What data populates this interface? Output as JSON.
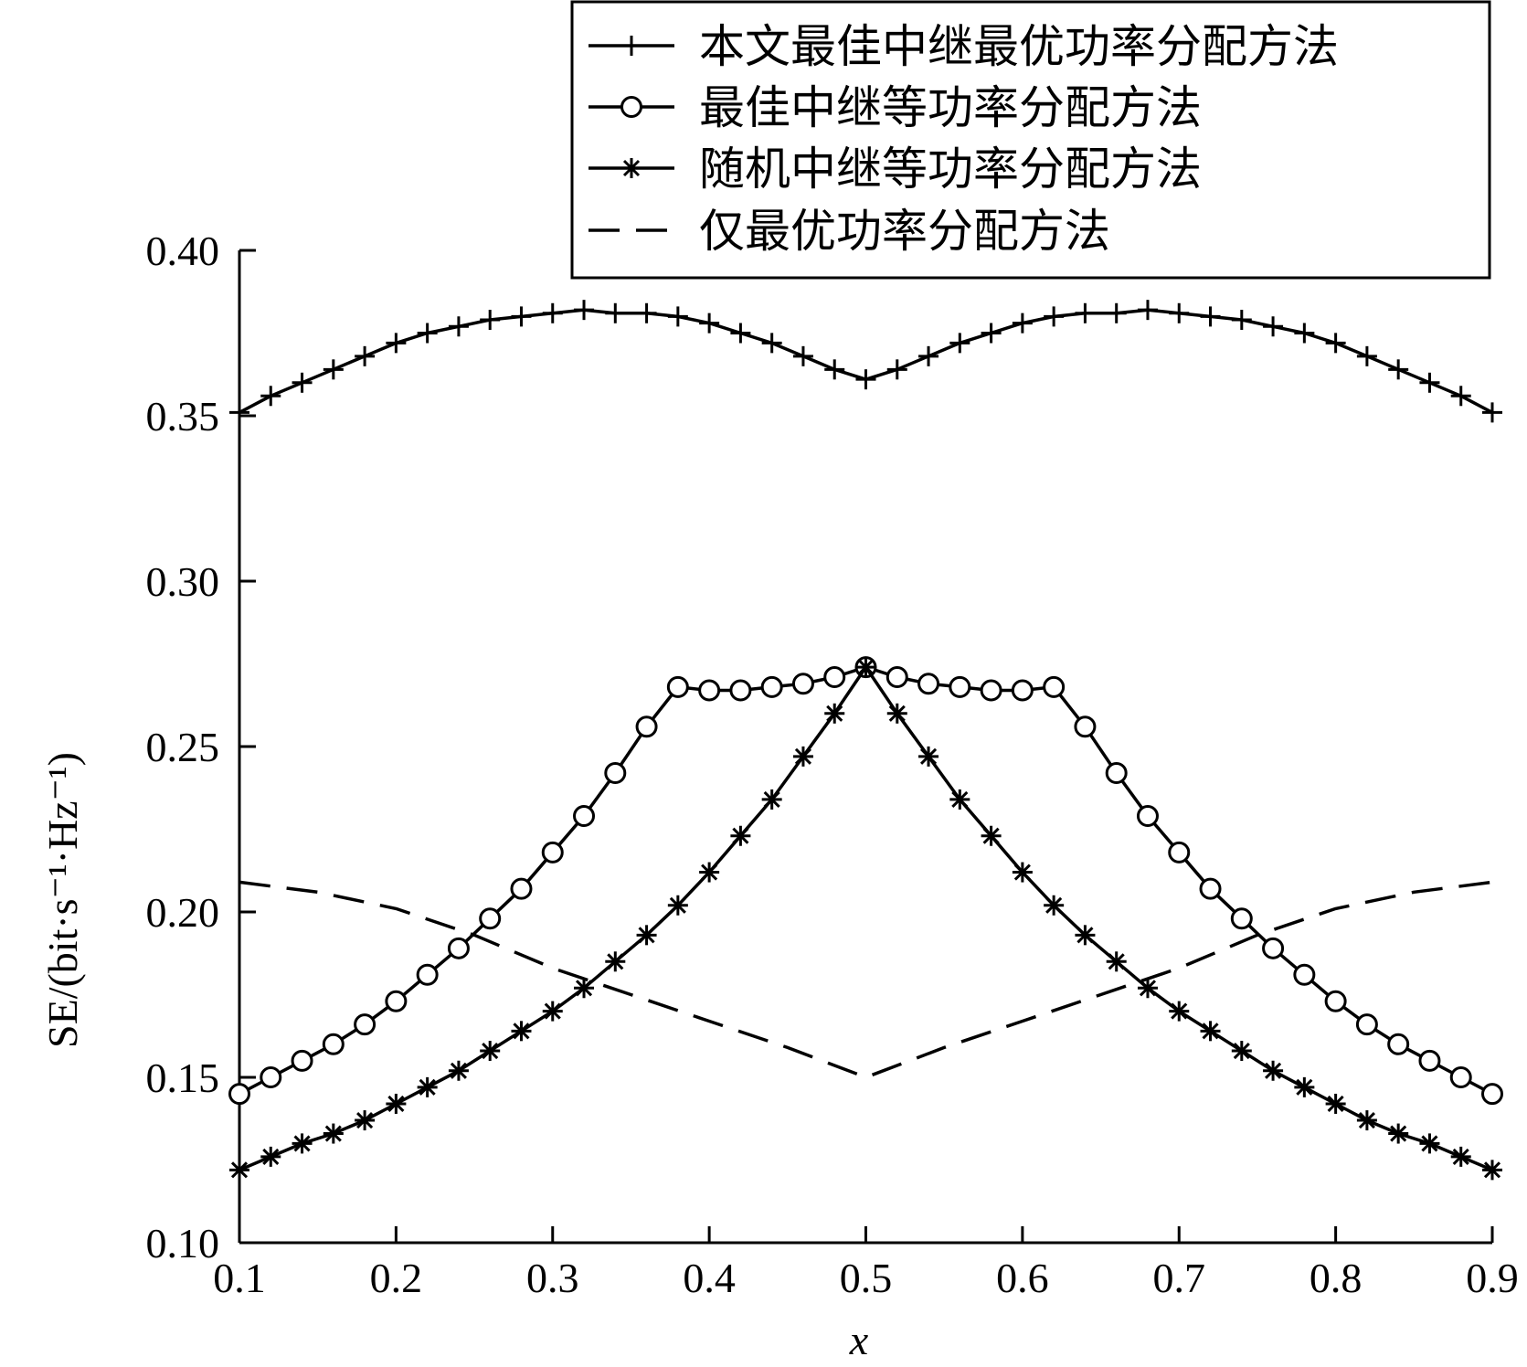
{
  "chart_data": {
    "type": "line",
    "xlabel": "x",
    "ylabel": "SE/(bit·s⁻¹·Hz⁻¹)",
    "xlim": [
      0.1,
      0.9
    ],
    "ylim": [
      0.1,
      0.4
    ],
    "x_ticks": [
      "0.1",
      "0.2",
      "0.3",
      "0.4",
      "0.5",
      "0.6",
      "0.7",
      "0.8",
      "0.9"
    ],
    "y_ticks": [
      "0.10",
      "0.15",
      "0.20",
      "0.25",
      "0.30",
      "0.35",
      "0.40"
    ],
    "grid": false,
    "legend_position": "top-right",
    "x": [
      0.1,
      0.12,
      0.14,
      0.16,
      0.18,
      0.2,
      0.22,
      0.24,
      0.26,
      0.28,
      0.3,
      0.32,
      0.34,
      0.36,
      0.38,
      0.4,
      0.42,
      0.44,
      0.46,
      0.48,
      0.5,
      0.52,
      0.54,
      0.56,
      0.58,
      0.6,
      0.62,
      0.64,
      0.66,
      0.68,
      0.7,
      0.72,
      0.74,
      0.76,
      0.78,
      0.8,
      0.82,
      0.84,
      0.86,
      0.88,
      0.9
    ],
    "series": [
      {
        "name": "本文最佳中继最优功率分配方法",
        "marker": "plus",
        "line": "solid",
        "values": [
          0.351,
          0.356,
          0.36,
          0.364,
          0.368,
          0.372,
          0.375,
          0.377,
          0.379,
          0.38,
          0.381,
          0.382,
          0.381,
          0.381,
          0.38,
          0.378,
          0.375,
          0.372,
          0.368,
          0.364,
          0.361,
          0.364,
          0.368,
          0.372,
          0.375,
          0.378,
          0.38,
          0.381,
          0.381,
          0.382,
          0.381,
          0.38,
          0.379,
          0.377,
          0.375,
          0.372,
          0.368,
          0.364,
          0.36,
          0.356,
          0.351
        ]
      },
      {
        "name": "最佳中继等功率分配方法",
        "marker": "circle",
        "line": "solid",
        "values": [
          0.145,
          0.15,
          0.155,
          0.16,
          0.166,
          0.173,
          0.181,
          0.189,
          0.198,
          0.207,
          0.218,
          0.229,
          0.242,
          0.256,
          0.268,
          0.267,
          0.267,
          0.268,
          0.269,
          0.271,
          0.274,
          0.271,
          0.269,
          0.268,
          0.267,
          0.267,
          0.268,
          0.256,
          0.242,
          0.229,
          0.218,
          0.207,
          0.198,
          0.189,
          0.181,
          0.173,
          0.166,
          0.16,
          0.155,
          0.15,
          0.145
        ]
      },
      {
        "name": "随机中继等功率分配方法",
        "marker": "asterisk",
        "line": "solid",
        "values": [
          0.122,
          0.126,
          0.13,
          0.133,
          0.137,
          0.142,
          0.147,
          0.152,
          0.158,
          0.164,
          0.17,
          0.177,
          0.185,
          0.193,
          0.202,
          0.212,
          0.223,
          0.234,
          0.247,
          0.26,
          0.274,
          0.26,
          0.247,
          0.234,
          0.223,
          0.212,
          0.202,
          0.193,
          0.185,
          0.177,
          0.17,
          0.164,
          0.158,
          0.152,
          0.147,
          0.142,
          0.137,
          0.133,
          0.13,
          0.126,
          0.122
        ]
      },
      {
        "name": "仅最优功率分配方法",
        "marker": "none",
        "line": "dashed",
        "x": [
          0.1,
          0.15,
          0.2,
          0.25,
          0.3,
          0.35,
          0.4,
          0.45,
          0.5,
          0.55,
          0.6,
          0.65,
          0.7,
          0.75,
          0.8,
          0.85,
          0.9
        ],
        "values": [
          0.209,
          0.206,
          0.201,
          0.193,
          0.183,
          0.175,
          0.167,
          0.159,
          0.15,
          0.159,
          0.167,
          0.175,
          0.183,
          0.193,
          0.201,
          0.206,
          0.209
        ]
      }
    ]
  },
  "colors": {
    "line": "#000000",
    "background": "#ffffff"
  }
}
